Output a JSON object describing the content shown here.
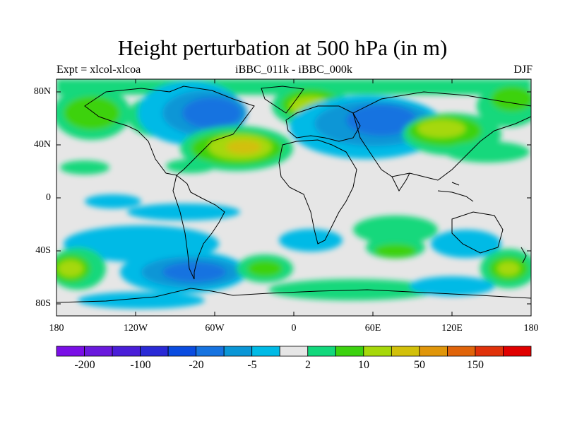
{
  "title": "Height perturbation at 500 hPa (in m)",
  "subtitle_left": "Expt = xlcol-xlcoa",
  "subtitle_center": "iBBC_011k - iBBC_000k",
  "subtitle_right": "DJF",
  "map": {
    "projection": "cylindrical-equidistant",
    "lon_range": [
      -180,
      180
    ],
    "lat_range": [
      -90,
      90
    ],
    "missing_color": "#e6e6e6"
  },
  "x_ticks": [
    "180",
    "120W",
    "60W",
    "0",
    "60E",
    "120E",
    "180"
  ],
  "y_ticks": [
    "80N",
    "40N",
    "0",
    "40S",
    "80S"
  ],
  "colorbar": {
    "colors": [
      "#7a0fe6",
      "#6a1add",
      "#4a1ed8",
      "#2a2ad6",
      "#0a4ce0",
      "#1673e0",
      "#0a96d6",
      "#00bae6",
      "#e6e6e6",
      "#12d87c",
      "#3cd20f",
      "#a6d80a",
      "#d2c00a",
      "#e0960a",
      "#e0640a",
      "#e0320a",
      "#e00000"
    ],
    "labels": [
      "-200",
      "-100",
      "-20",
      "-5",
      "2",
      "10",
      "50",
      "150"
    ]
  }
}
